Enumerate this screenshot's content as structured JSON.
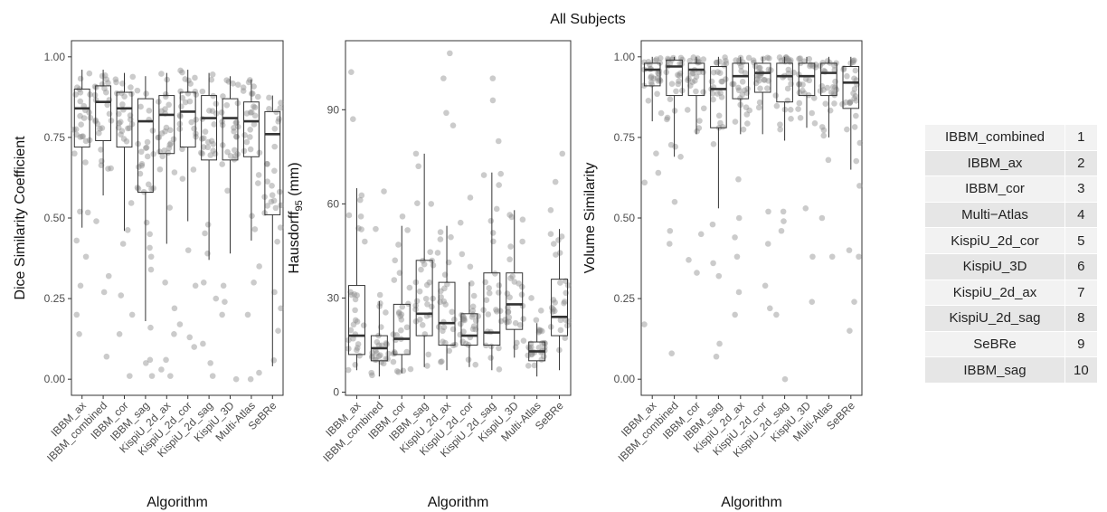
{
  "figure_title": "All Subjects",
  "chart_data": [
    {
      "type": "boxplot",
      "xlabel": "Algorithm",
      "ylabel": "Dice Similarity Coefficient",
      "ylim": [
        -0.05,
        1.05
      ],
      "yticks": [
        "0.00",
        "0.25",
        "0.50",
        "0.75",
        "1.00"
      ],
      "ytick_values": [
        0,
        0.25,
        0.5,
        0.75,
        1.0
      ],
      "grid": false,
      "categories": [
        "IBBM_ax",
        "IBBM_combined",
        "IBBM_cor",
        "IBBM_sag",
        "KispiU_2d_ax",
        "KispiU_2d_cor",
        "KispiU_2d_sag",
        "KispiU_3D",
        "Multi-Atlas",
        "SeBRe"
      ],
      "boxes": [
        {
          "whisker_low": 0.47,
          "q1": 0.72,
          "median": 0.84,
          "q3": 0.9,
          "whisker_high": 0.96
        },
        {
          "whisker_low": 0.57,
          "q1": 0.74,
          "median": 0.86,
          "q3": 0.91,
          "whisker_high": 0.96
        },
        {
          "whisker_low": 0.46,
          "q1": 0.72,
          "median": 0.84,
          "q3": 0.89,
          "whisker_high": 0.95
        },
        {
          "whisker_low": 0.18,
          "q1": 0.58,
          "median": 0.8,
          "q3": 0.87,
          "whisker_high": 0.94
        },
        {
          "whisker_low": 0.42,
          "q1": 0.7,
          "median": 0.82,
          "q3": 0.88,
          "whisker_high": 0.95
        },
        {
          "whisker_low": 0.49,
          "q1": 0.72,
          "median": 0.83,
          "q3": 0.89,
          "whisker_high": 0.96
        },
        {
          "whisker_low": 0.37,
          "q1": 0.68,
          "median": 0.81,
          "q3": 0.88,
          "whisker_high": 0.95
        },
        {
          "whisker_low": 0.39,
          "q1": 0.68,
          "median": 0.81,
          "q3": 0.87,
          "whisker_high": 0.94
        },
        {
          "whisker_low": 0.43,
          "q1": 0.69,
          "median": 0.8,
          "q3": 0.86,
          "whisker_high": 0.93
        },
        {
          "whisker_low": 0.04,
          "q1": 0.51,
          "median": 0.76,
          "q3": 0.83,
          "whisker_high": 0.88
        }
      ],
      "extra_points": [
        [
          0,
          0.14
        ],
        [
          0,
          0.38
        ],
        [
          0,
          0.29
        ],
        [
          0,
          0.2
        ],
        [
          0,
          0.43
        ],
        [
          0,
          0.52
        ],
        [
          1,
          0.32
        ],
        [
          1,
          0.27
        ],
        [
          1,
          0.49
        ],
        [
          1,
          0.07
        ],
        [
          2,
          0.26
        ],
        [
          2,
          0.2
        ],
        [
          2,
          0.14
        ],
        [
          2,
          0.01
        ],
        [
          2,
          0.42
        ],
        [
          3,
          0.06
        ],
        [
          3,
          0.05
        ],
        [
          3,
          0.01
        ],
        [
          3,
          0.16
        ],
        [
          3,
          0.38
        ],
        [
          3,
          0.45
        ],
        [
          4,
          0.01
        ],
        [
          4,
          0.03
        ],
        [
          4,
          0.06
        ],
        [
          4,
          0.14
        ],
        [
          4,
          0.22
        ],
        [
          4,
          0.3
        ],
        [
          5,
          0.1
        ],
        [
          5,
          0.13
        ],
        [
          5,
          0.17
        ],
        [
          5,
          0.29
        ],
        [
          5,
          0.4
        ],
        [
          6,
          0.01
        ],
        [
          6,
          0.05
        ],
        [
          6,
          0.11
        ],
        [
          6,
          0.25
        ],
        [
          6,
          0.3
        ],
        [
          7,
          0.0
        ],
        [
          7,
          0.2
        ],
        [
          7,
          0.24
        ],
        [
          7,
          0.29
        ],
        [
          8,
          0.0
        ],
        [
          8,
          0.02
        ],
        [
          8,
          0.2
        ],
        [
          8,
          0.3
        ],
        [
          8,
          0.35
        ],
        [
          9,
          0.15
        ],
        [
          9,
          0.22
        ],
        [
          9,
          0.27
        ]
      ]
    },
    {
      "type": "boxplot",
      "xlabel": "Algorithm",
      "ylabel": "Hausdorff",
      "ylabel_sub": "95",
      "ylabel_unit": " (mm)",
      "ylim": [
        -1,
        112
      ],
      "yticks": [
        "0",
        "30",
        "60",
        "90"
      ],
      "ytick_values": [
        0,
        30,
        60,
        90
      ],
      "grid": false,
      "categories": [
        "IBBM_ax",
        "IBBM_combined",
        "IBBM_cor",
        "IBBM_sag",
        "KispiU_2d_ax",
        "KispiU_2d_cor",
        "KispiU_2d_sag",
        "KispiU_3D",
        "Multi-Atlas",
        "SeBRe"
      ],
      "boxes": [
        {
          "whisker_low": 7,
          "q1": 12,
          "median": 18,
          "q3": 34,
          "whisker_high": 65
        },
        {
          "whisker_low": 5,
          "q1": 10,
          "median": 14,
          "q3": 18,
          "whisker_high": 29
        },
        {
          "whisker_low": 6,
          "q1": 12,
          "median": 17,
          "q3": 28,
          "whisker_high": 53
        },
        {
          "whisker_low": 8,
          "q1": 18,
          "median": 25,
          "q3": 42,
          "whisker_high": 76
        },
        {
          "whisker_low": 7,
          "q1": 15,
          "median": 22,
          "q3": 35,
          "whisker_high": 53
        },
        {
          "whisker_low": 8,
          "q1": 15,
          "median": 18,
          "q3": 25,
          "whisker_high": 35
        },
        {
          "whisker_low": 7,
          "q1": 15,
          "median": 19,
          "q3": 38,
          "whisker_high": 70
        },
        {
          "whisker_low": 11,
          "q1": 20,
          "median": 28,
          "q3": 38,
          "whisker_high": 58
        },
        {
          "whisker_low": 5,
          "q1": 10,
          "median": 13,
          "q3": 16,
          "whisker_high": 22
        },
        {
          "whisker_low": 7,
          "q1": 18,
          "median": 24,
          "q3": 36,
          "whisker_high": 52
        }
      ],
      "extra_points": [
        [
          0,
          102
        ],
        [
          0,
          87
        ],
        [
          0,
          56
        ],
        [
          0,
          48
        ],
        [
          1,
          64
        ],
        [
          1,
          52
        ],
        [
          1,
          31
        ],
        [
          2,
          56
        ],
        [
          2,
          47
        ],
        [
          2,
          38
        ],
        [
          3,
          76
        ],
        [
          3,
          72
        ],
        [
          3,
          60
        ],
        [
          4,
          108
        ],
        [
          4,
          100
        ],
        [
          4,
          89
        ],
        [
          4,
          85
        ],
        [
          4,
          51
        ],
        [
          5,
          62
        ],
        [
          5,
          54
        ],
        [
          5,
          44
        ],
        [
          5,
          40
        ],
        [
          6,
          100
        ],
        [
          6,
          93
        ],
        [
          6,
          80
        ],
        [
          6,
          66
        ],
        [
          7,
          55
        ],
        [
          7,
          48
        ],
        [
          8,
          23
        ],
        [
          8,
          26
        ],
        [
          8,
          30
        ],
        [
          9,
          76
        ],
        [
          9,
          67
        ],
        [
          9,
          58
        ]
      ]
    },
    {
      "type": "boxplot",
      "xlabel": "Algorithm",
      "ylabel": "Volume Similarity",
      "ylim": [
        -0.05,
        1.05
      ],
      "yticks": [
        "0.00",
        "0.25",
        "0.50",
        "0.75",
        "1.00"
      ],
      "ytick_values": [
        0,
        0.25,
        0.5,
        0.75,
        1.0
      ],
      "grid": false,
      "categories": [
        "IBBM_ax",
        "IBBM_combined",
        "IBBM_cor",
        "IBBM_sag",
        "KispiU_2d_ax",
        "KispiU_2d_cor",
        "KispiU_2d_sag",
        "KispiU_3D",
        "Multi-Atlas",
        "SeBRe"
      ],
      "boxes": [
        {
          "whisker_low": 0.8,
          "q1": 0.91,
          "median": 0.96,
          "q3": 0.98,
          "whisker_high": 1.0
        },
        {
          "whisker_low": 0.69,
          "q1": 0.88,
          "median": 0.97,
          "q3": 0.99,
          "whisker_high": 1.0
        },
        {
          "whisker_low": 0.76,
          "q1": 0.88,
          "median": 0.96,
          "q3": 0.98,
          "whisker_high": 1.0
        },
        {
          "whisker_low": 0.53,
          "q1": 0.78,
          "median": 0.9,
          "q3": 0.97,
          "whisker_high": 1.0
        },
        {
          "whisker_low": 0.76,
          "q1": 0.87,
          "median": 0.94,
          "q3": 0.98,
          "whisker_high": 1.0
        },
        {
          "whisker_low": 0.76,
          "q1": 0.89,
          "median": 0.95,
          "q3": 0.98,
          "whisker_high": 1.0
        },
        {
          "whisker_low": 0.74,
          "q1": 0.86,
          "median": 0.94,
          "q3": 0.98,
          "whisker_high": 1.0
        },
        {
          "whisker_low": 0.78,
          "q1": 0.88,
          "median": 0.94,
          "q3": 0.98,
          "whisker_high": 1.0
        },
        {
          "whisker_low": 0.75,
          "q1": 0.88,
          "median": 0.95,
          "q3": 0.98,
          "whisker_high": 1.0
        },
        {
          "whisker_low": 0.65,
          "q1": 0.84,
          "median": 0.92,
          "q3": 0.97,
          "whisker_high": 1.0
        }
      ],
      "extra_points": [
        [
          0,
          0.17
        ],
        [
          0,
          0.64
        ],
        [
          0,
          0.61
        ],
        [
          0,
          0.7
        ],
        [
          1,
          0.08
        ],
        [
          1,
          0.42
        ],
        [
          1,
          0.46
        ],
        [
          1,
          0.55
        ],
        [
          2,
          0.33
        ],
        [
          2,
          0.37
        ],
        [
          2,
          0.45
        ],
        [
          3,
          0.07
        ],
        [
          3,
          0.11
        ],
        [
          3,
          0.32
        ],
        [
          3,
          0.36
        ],
        [
          3,
          0.48
        ],
        [
          4,
          0.2
        ],
        [
          4,
          0.27
        ],
        [
          4,
          0.38
        ],
        [
          4,
          0.44
        ],
        [
          4,
          0.5
        ],
        [
          4,
          0.62
        ],
        [
          5,
          0.22
        ],
        [
          5,
          0.29
        ],
        [
          5,
          0.42
        ],
        [
          5,
          0.52
        ],
        [
          6,
          0.0
        ],
        [
          6,
          0.2
        ],
        [
          6,
          0.46
        ],
        [
          6,
          0.49
        ],
        [
          6,
          0.52
        ],
        [
          7,
          0.24
        ],
        [
          7,
          0.38
        ],
        [
          7,
          0.53
        ],
        [
          8,
          0.38
        ],
        [
          8,
          0.5
        ],
        [
          8,
          0.68
        ],
        [
          9,
          0.15
        ],
        [
          9,
          0.24
        ],
        [
          9,
          0.38
        ],
        [
          9,
          0.4
        ],
        [
          9,
          0.6
        ]
      ]
    }
  ],
  "ranking_table": [
    {
      "algorithm": "IBBM_combined",
      "rank": "1"
    },
    {
      "algorithm": "IBBM_ax",
      "rank": "2"
    },
    {
      "algorithm": "IBBM_cor",
      "rank": "3"
    },
    {
      "algorithm": "Multi−Atlas",
      "rank": "4"
    },
    {
      "algorithm": "KispiU_2d_cor",
      "rank": "5"
    },
    {
      "algorithm": "KispiU_3D",
      "rank": "6"
    },
    {
      "algorithm": "KispiU_2d_ax",
      "rank": "7"
    },
    {
      "algorithm": "KispiU_2d_sag",
      "rank": "8"
    },
    {
      "algorithm": "SeBRe",
      "rank": "9"
    },
    {
      "algorithm": "IBBM_sag",
      "rank": "10"
    }
  ],
  "colors": {
    "points": "#8c8c8c",
    "box": "#333333",
    "median": "#333333",
    "table_dark": "#e6e6e6",
    "table_light": "#f2f2f2"
  }
}
